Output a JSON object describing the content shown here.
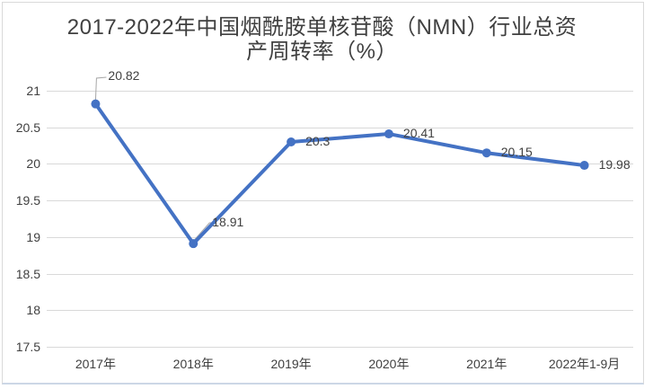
{
  "title": {
    "line1": "2017-2022年中国烟酰胺单核苷酸（NMN）行业总资",
    "line2": "产周转率（%）"
  },
  "chart_data": {
    "type": "line",
    "title": "2017-2022年中国烟酰胺单核苷酸（NMN）行业总资产周转率（%）",
    "categories": [
      "2017年",
      "2018年",
      "2019年",
      "2020年",
      "2021年",
      "2022年1-9月"
    ],
    "values": [
      20.82,
      18.91,
      20.3,
      20.41,
      20.15,
      19.98
    ],
    "data_labels": [
      "20.82",
      "18.91",
      "20.3",
      "20.41",
      "20.15",
      "19.98"
    ],
    "yticks": [
      "21",
      "20.5",
      "20",
      "19.5",
      "19",
      "18.5",
      "18",
      "17.5"
    ],
    "ylim": [
      17.5,
      21
    ],
    "xlabel": "",
    "ylabel": "",
    "grid": "horizontal",
    "legend_position": "none",
    "line_color": "#4472C4",
    "marker_color": "#4472C4",
    "gridline_color": "#D9D9D9",
    "label_color": "#404040",
    "leader_line_color": "#A6A6A6"
  }
}
